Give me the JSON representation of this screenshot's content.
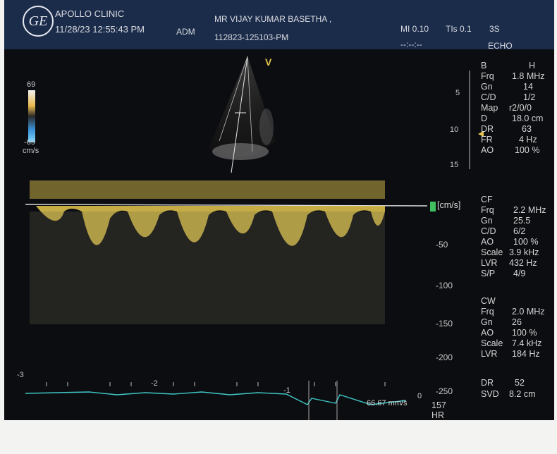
{
  "header": {
    "logo": "GE",
    "clinic": "APOLLO CLINIC",
    "datetime": "11/28/23 12:55:43 PM",
    "operator": "ADM",
    "patient_name": "MR VIJAY KUMAR BASETHA ,",
    "patient_id": "112823-125103-PM",
    "mi": "MI 0.10",
    "tis": "TIs 0.1",
    "probe": "3S",
    "timer": "--:--:--",
    "mode": "ECHO"
  },
  "image": {
    "v_marker": "V",
    "color_bar_top": "69",
    "color_bar_bottom": "-69",
    "color_bar_unit": "cm/s",
    "depth_ticks": [
      "5",
      "10",
      "15"
    ]
  },
  "b_mode": {
    "title": "B",
    "title_value": "H",
    "rows": [
      {
        "label": "Frq",
        "value": "1.8 MHz"
      },
      {
        "label": "Gn",
        "value": "14"
      },
      {
        "label": "C/D",
        "value": "1/2"
      },
      {
        "label": "Map",
        "value": "r2/0/0"
      },
      {
        "label": "D",
        "value": "18.0 cm"
      },
      {
        "label": "DR",
        "value": "63"
      },
      {
        "label": "FR",
        "value": "4 Hz"
      },
      {
        "label": "AO",
        "value": "100 %"
      }
    ]
  },
  "cf": {
    "title": "CF",
    "rows": [
      {
        "label": "Frq",
        "value": "2.2 MHz"
      },
      {
        "label": "Gn",
        "value": "25.5"
      },
      {
        "label": "C/D",
        "value": "6/2"
      },
      {
        "label": "AO",
        "value": "100 %"
      },
      {
        "label": "Scale",
        "value": "3.9 kHz"
      },
      {
        "label": "LVR",
        "value": "432 Hz"
      },
      {
        "label": "S/P",
        "value": "4/9"
      }
    ]
  },
  "cw": {
    "title": "CW",
    "rows": [
      {
        "label": "Frq",
        "value": "2.0 MHz"
      },
      {
        "label": "Gn",
        "value": "26"
      },
      {
        "label": "AO",
        "value": "100 %"
      },
      {
        "label": "Scale",
        "value": "7.4 kHz"
      },
      {
        "label": "LVR",
        "value": "184 Hz"
      }
    ]
  },
  "misc": {
    "dr_label": "DR",
    "dr_value": "52",
    "svd_label": "SVD",
    "svd_value": "8.2 cm",
    "hr_value": "157",
    "hr_label": "HR",
    "velocity_readout": "66.67 mm/s"
  },
  "doppler_axis": {
    "unit": "[cm/s]",
    "ticks": [
      "-50",
      "-100",
      "-150",
      "-200",
      "-250"
    ]
  },
  "time_axis": {
    "ticks": [
      "-3",
      "-2",
      "-1",
      "0"
    ]
  },
  "colors": {
    "spectrum": "#e6c84e",
    "ecg": "#3fc7c7",
    "header_bg": "#1b2b4a",
    "marker_green": "#3fbf5f"
  }
}
